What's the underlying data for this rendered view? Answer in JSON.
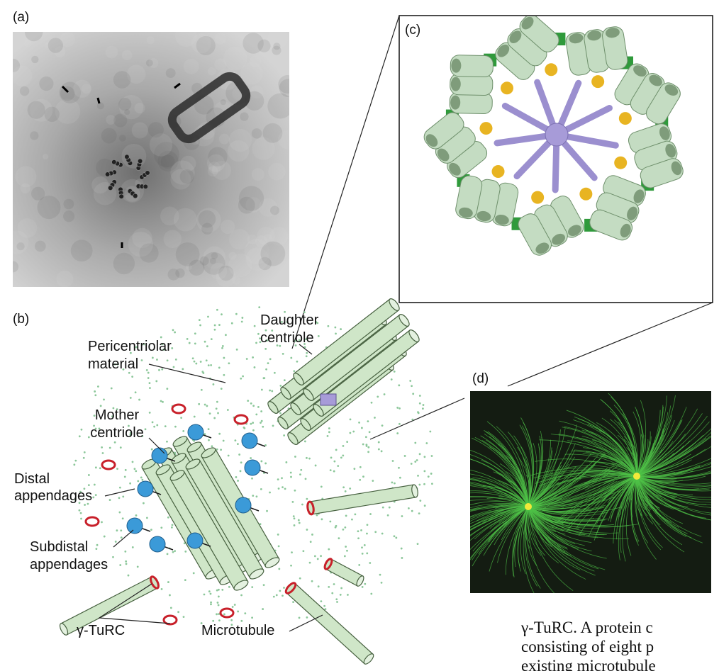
{
  "labels": {
    "panel_a": "(a)",
    "panel_b": "(b)",
    "panel_c": "(c)",
    "panel_d": "(d)"
  },
  "annotations": {
    "daughter_centriole": [
      "Daughter",
      "centriole"
    ],
    "pericentriolar_material": [
      "Pericentriolar",
      "material"
    ],
    "mother_centriole": [
      "Mother",
      "centriole"
    ],
    "distal_appendages": [
      "Distal",
      "appendages"
    ],
    "subdistal_appendages": [
      "Subdistal",
      "appendages"
    ],
    "gamma_turc": "γ-TuRC",
    "microtubule": "Microtubule"
  },
  "body_text": [
    "γ-TuRC. A protein c",
    "consisting of eight p",
    "existing microtubule"
  ]
}
